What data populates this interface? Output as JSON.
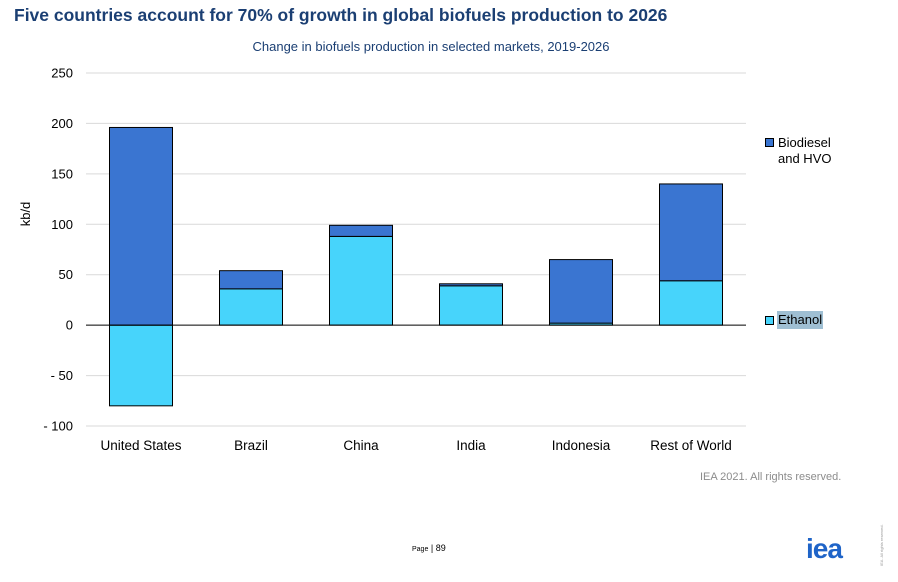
{
  "slide": {
    "title": "Five countries account for 70% of growth in global biofuels production to 2026",
    "source": "IEA 2021. All rights reserved.",
    "page_label": "Page",
    "page_separator": " | ",
    "page_number": "89",
    "logo_text": "iea",
    "vertical_note": "IEA. All rights reserved."
  },
  "colors": {
    "biodiesel": "#3a75d1",
    "ethanol": "#47d4fb",
    "title": "#1b3f73"
  },
  "chart_data": {
    "type": "bar",
    "stacked": true,
    "title": "Change in biofuels production in selected markets, 2019-2026",
    "xlabel": "",
    "ylabel": "kb/d",
    "ylim": [
      -100,
      250
    ],
    "yticks": [
      250,
      200,
      150,
      100,
      50,
      0,
      -50,
      -100
    ],
    "ytick_labels": [
      "250",
      "200",
      "150",
      "100",
      "50",
      "0",
      "- 50",
      "- 100"
    ],
    "grid": true,
    "legend_position": "right",
    "categories": [
      "United States",
      "Brazil",
      "China",
      "India",
      "Indonesia",
      "Rest of World"
    ],
    "series": [
      {
        "name": "Biodiesel and HVO",
        "color_key": "biodiesel",
        "values": [
          196,
          18,
          11,
          2,
          63,
          96
        ]
      },
      {
        "name": "Ethanol",
        "color_key": "ethanol",
        "values": [
          -80,
          36,
          88,
          39,
          2,
          44
        ]
      }
    ]
  }
}
